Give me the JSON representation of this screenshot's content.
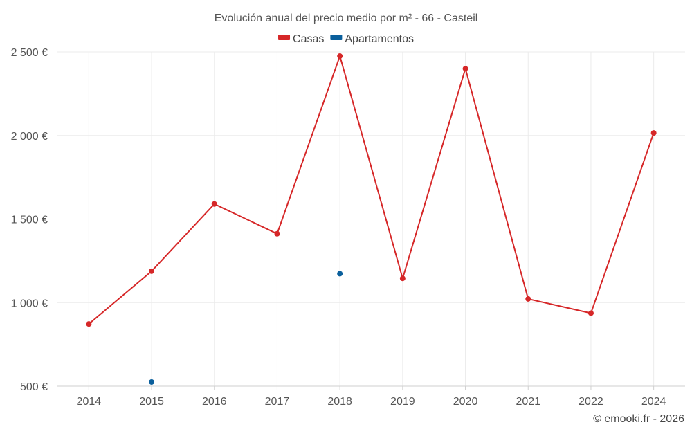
{
  "chart_data": {
    "type": "line",
    "title": "Evolución anual del precio medio por m² - 66 - Casteil",
    "xlabel": "",
    "ylabel": "",
    "categories": [
      "2014",
      "2015",
      "2016",
      "2017",
      "2018",
      "2019",
      "2020",
      "2021",
      "2022",
      "2024"
    ],
    "ylim": [
      500,
      2500
    ],
    "yticks": [
      500,
      1000,
      1500,
      2000,
      2500
    ],
    "ytick_labels": [
      "500 €",
      "1 000 €",
      "1 500 €",
      "2 000 €",
      "2 500 €"
    ],
    "grid": true,
    "legend_position": "top-center",
    "series": [
      {
        "name": "Casas",
        "color": "#d62728",
        "values": [
          872,
          1188,
          1590,
          1412,
          2475,
          1145,
          2400,
          1022,
          937,
          2015
        ],
        "show_line": true
      },
      {
        "name": "Apartamentos",
        "color": "#0a5f9c",
        "values": [
          null,
          525,
          null,
          null,
          1173,
          null,
          null,
          null,
          null,
          null
        ],
        "show_line": false
      }
    ]
  },
  "credit": "© emooki.fr - 2026"
}
